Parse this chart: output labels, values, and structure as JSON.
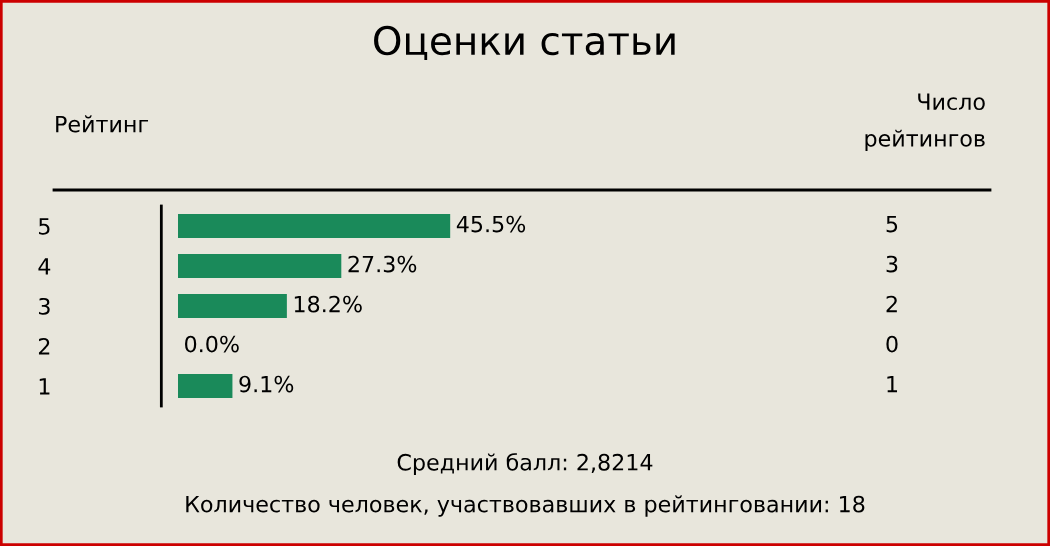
{
  "chart_data": {
    "type": "bar",
    "orientation": "horizontal",
    "title": "Оценки статьи",
    "ylabel": "Рейтинг",
    "categories": [
      "5",
      "4",
      "3",
      "2",
      "1"
    ],
    "y2_categories": [
      "5",
      "3",
      "2",
      "0",
      "1"
    ],
    "values": [
      45.5,
      27.3,
      18.2,
      0.0,
      9.1
    ],
    "value_labels": [
      "45.5%",
      "27.3%",
      "18.2%",
      "0.0%",
      "9.1%"
    ],
    "color": "#1a8a5a",
    "grid": false,
    "legend": false,
    "annotations": [
      "Число\nрейтингов",
      "Средний балл: 2,8214",
      "Количество человек, участвовавших в рейтинговании: 18"
    ]
  }
}
